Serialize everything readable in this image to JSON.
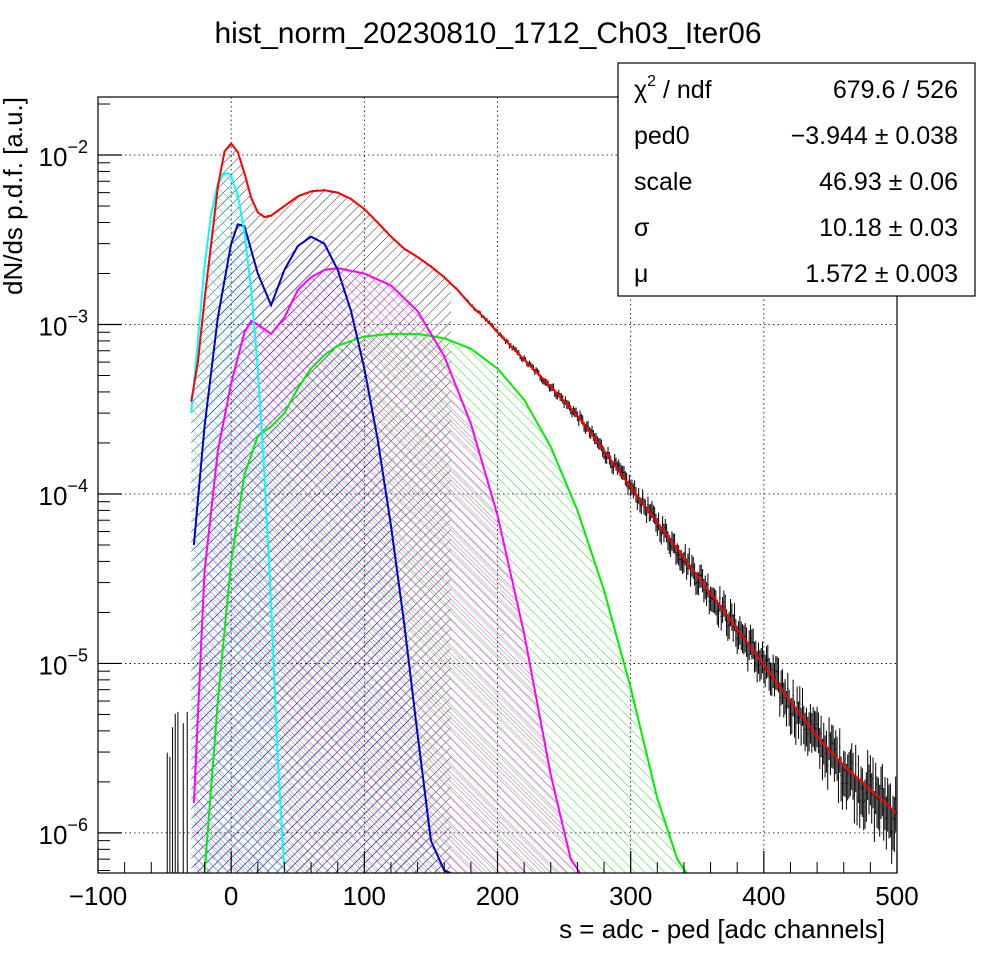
{
  "chart_data": {
    "type": "line",
    "title": "hist_norm_20230810_1712_Ch03_Iter06",
    "xlabel": "s = adc - ped [adc channels]",
    "ylabel": "dN/ds p.d.f. [a.u.]",
    "xlim": [
      -100,
      500
    ],
    "ylim": [
      5.8e-07,
      0.022
    ],
    "ylog": true,
    "grid": true,
    "x_ticks": [
      "−100",
      "0",
      "100",
      "200",
      "300",
      "400",
      "500"
    ],
    "x_tick_values": [
      -100,
      0,
      100,
      200,
      300,
      400,
      500
    ],
    "y_ticks": [
      {
        "value": 1e-06,
        "base": "10",
        "exp": "−6"
      },
      {
        "value": 1e-05,
        "base": "10",
        "exp": "−5"
      },
      {
        "value": 0.0001,
        "base": "10",
        "exp": "−4"
      },
      {
        "value": 0.001,
        "base": "10",
        "exp": "−3"
      },
      {
        "value": 0.01,
        "base": "10",
        "exp": "−2"
      }
    ],
    "series": [
      {
        "key": "total",
        "color": "#ff0000",
        "x": [
          -30,
          -25,
          -20,
          -15,
          -10,
          -5,
          0,
          5,
          10,
          15,
          20,
          25,
          30,
          40,
          50,
          60,
          70,
          80,
          90,
          100,
          110,
          120,
          130,
          140,
          150,
          160,
          170,
          180,
          190,
          200,
          220,
          240,
          260,
          280,
          300,
          320,
          340,
          360,
          380,
          400,
          420,
          440,
          460,
          480,
          500
        ],
        "y": [
          0.00035,
          0.0006,
          0.0014,
          0.003,
          0.0065,
          0.0105,
          0.0117,
          0.0104,
          0.0078,
          0.0056,
          0.0046,
          0.0043,
          0.0044,
          0.005,
          0.0057,
          0.0061,
          0.0062,
          0.006,
          0.0055,
          0.0048,
          0.004,
          0.0033,
          0.0028,
          0.0025,
          0.0022,
          0.0019,
          0.0016,
          0.0013,
          0.0011,
          0.0009,
          0.00062,
          0.00043,
          0.00029,
          0.00018,
          0.00011,
          6.8e-05,
          4.2e-05,
          2.6e-05,
          1.6e-05,
          9.8e-06,
          6e-06,
          3.7e-06,
          2.5e-06,
          1.8e-06,
          1.3e-06
        ]
      },
      {
        "key": "pedestal",
        "color": "#00ffff",
        "x": [
          -30,
          -25,
          -20,
          -15,
          -10,
          -5,
          -2,
          0,
          5,
          10,
          15,
          20,
          25,
          30,
          35,
          40
        ],
        "y": [
          0.0003,
          0.0008,
          0.0022,
          0.0045,
          0.0068,
          0.0078,
          0.0078,
          0.0075,
          0.0058,
          0.0035,
          0.0016,
          0.00055,
          0.00013,
          2.2e-05,
          2.7e-06,
          6e-07
        ]
      },
      {
        "key": "pe1",
        "color": "#0000cc",
        "x": [
          -28,
          -20,
          -10,
          0,
          5,
          10,
          20,
          30,
          40,
          50,
          60,
          70,
          80,
          90,
          100,
          110,
          120,
          130,
          140,
          150,
          160,
          165
        ],
        "y": [
          5e-05,
          0.00025,
          0.0011,
          0.003,
          0.0039,
          0.0038,
          0.002,
          0.0013,
          0.0021,
          0.0029,
          0.0033,
          0.003,
          0.0021,
          0.0012,
          0.00055,
          0.00021,
          6.5e-05,
          1.7e-05,
          3.8e-06,
          9e-07,
          6e-07,
          5.8e-07
        ]
      },
      {
        "key": "pe2",
        "color": "#ff00ff",
        "x": [
          -28,
          -20,
          -10,
          0,
          10,
          15,
          20,
          30,
          40,
          50,
          60,
          70,
          80,
          100,
          120,
          140,
          160,
          180,
          200,
          220,
          240,
          255,
          262
        ],
        "y": [
          1.5e-06,
          3.5e-05,
          0.00018,
          0.00045,
          0.0009,
          0.00105,
          0.001,
          0.00088,
          0.0011,
          0.0016,
          0.0019,
          0.0021,
          0.00215,
          0.002,
          0.0017,
          0.0012,
          0.00065,
          0.00026,
          7.5e-05,
          1.5e-05,
          2.2e-06,
          7e-07,
          5.8e-07
        ]
      },
      {
        "key": "pe3",
        "color": "#00ee00",
        "x": [
          -20,
          -10,
          0,
          10,
          20,
          30,
          40,
          50,
          60,
          70,
          80,
          100,
          120,
          140,
          160,
          180,
          200,
          220,
          240,
          260,
          280,
          300,
          320,
          335,
          342
        ],
        "y": [
          5.8e-07,
          6e-06,
          4e-05,
          0.00013,
          0.00022,
          0.00025,
          0.0003,
          0.00042,
          0.00055,
          0.00066,
          0.00075,
          0.00085,
          0.00088,
          0.00088,
          0.00083,
          0.00072,
          0.00055,
          0.00036,
          0.00019,
          8e-05,
          2.7e-05,
          7.2e-06,
          1.6e-06,
          7e-07,
          5.8e-07
        ]
      }
    ],
    "stats": [
      {
        "label_pre": "χ",
        "label_sup": "2",
        "label_post": " / ndf",
        "value": "679.6 / 526"
      },
      {
        "label_pre": "ped0",
        "label_sup": "",
        "label_post": "",
        "value": "−3.944 ± 0.038"
      },
      {
        "label_pre": "scale",
        "label_sup": "",
        "label_post": "",
        "value": "46.93 ± 0.06"
      },
      {
        "label_pre": "σ",
        "label_sup": "",
        "label_post": "",
        "value": "10.18 ± 0.03"
      },
      {
        "label_pre": "μ",
        "label_sup": "",
        "label_post": "",
        "value": "1.572 ± 0.003"
      }
    ]
  }
}
